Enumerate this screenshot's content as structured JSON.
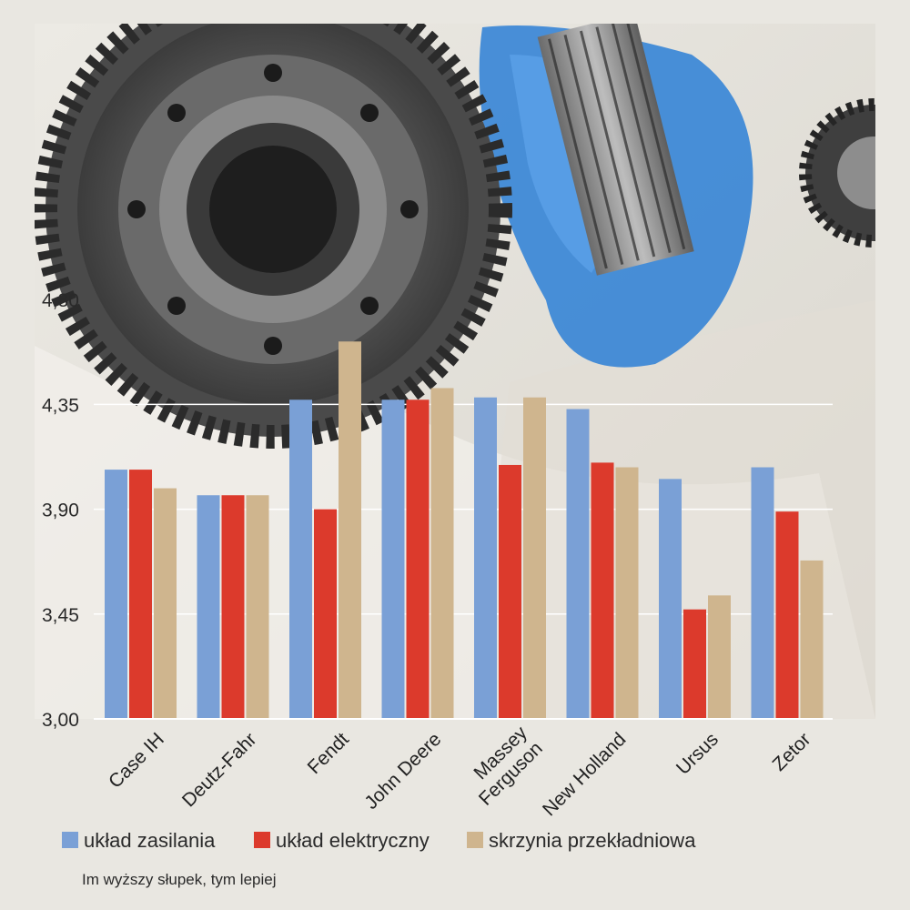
{
  "colors": {
    "background": "#e9e7e1",
    "uklad_zasilania": "#7aa0d6",
    "uklad_elektryczny": "#dc3a2c",
    "skrzynia": "#cfb58e",
    "grid": "#ffffff"
  },
  "chart_data": {
    "type": "bar",
    "title": "",
    "xlabel": "",
    "ylabel": "",
    "ylim": [
      3.0,
      4.5
    ],
    "yticks": [
      "3,00",
      "3,45",
      "3,90",
      "4,35",
      "4,80"
    ],
    "ytick_values": [
      3.0,
      3.45,
      3.9,
      4.35,
      4.8
    ],
    "grid": true,
    "legend_position": "bottom",
    "categories": [
      [
        "Case IH"
      ],
      [
        "Deutz-Fahr"
      ],
      [
        "Fendt"
      ],
      [
        "John Deere"
      ],
      [
        "Massey",
        "Ferguson"
      ],
      [
        "New Holland"
      ],
      [
        "Ursus"
      ],
      [
        "Zetor"
      ]
    ],
    "series": [
      {
        "name": "układ zasilania",
        "color_key": "uklad_zasilania",
        "values": [
          4.07,
          3.96,
          4.37,
          4.37,
          4.38,
          4.33,
          4.03,
          4.08
        ]
      },
      {
        "name": "układ elektryczny",
        "color_key": "uklad_elektryczny",
        "values": [
          4.07,
          3.96,
          3.9,
          4.37,
          4.09,
          4.1,
          3.47,
          3.89
        ]
      },
      {
        "name": "skrzynia przekładniowa",
        "color_key": "skrzynia",
        "values": [
          3.99,
          3.96,
          4.62,
          4.42,
          4.38,
          4.08,
          3.53,
          3.68
        ]
      }
    ],
    "note": "Im wyższy słupek, tym lepiej"
  }
}
